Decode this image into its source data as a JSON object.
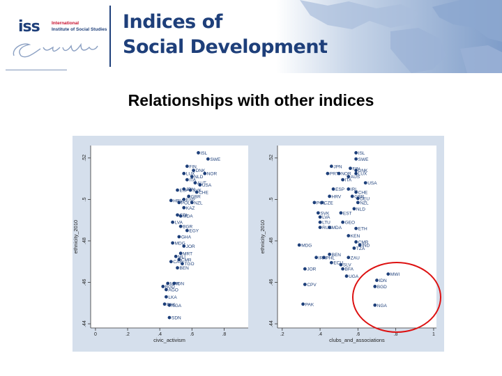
{
  "header": {
    "logo_abbr": "iss",
    "logo_line1": "International",
    "logo_line2": "Institute of Social Studies",
    "logo_signature": "Erasmus",
    "title_line1": "Indices of",
    "title_line2": "Social Development"
  },
  "slide_title": "Relationships with other indices",
  "colors": {
    "dot": "#1d3f7a",
    "panel_bg": "#d5dfec",
    "plot_bg": "#ffffff",
    "highlight": "#dd1111",
    "brand": "#1e3f7a"
  },
  "chart_data": [
    {
      "type": "scatter",
      "xlabel": "civic_activism",
      "ylabel": "ethnicity_2010",
      "xlim": [
        -0.03,
        0.95
      ],
      "ylim": [
        0.438,
        0.526
      ],
      "xticks": [
        "0",
        ".2",
        ".4",
        ".6",
        ".8"
      ],
      "xtick_values": [
        0,
        0.2,
        0.4,
        0.6,
        0.8
      ],
      "yticks": [
        ".44",
        ".46",
        ".48",
        ".5",
        ".52"
      ],
      "ytick_values": [
        0.44,
        0.46,
        0.48,
        0.5,
        0.52
      ],
      "grid": false,
      "points": [
        {
          "label": "ISL",
          "x": 0.64,
          "y": 0.5225
        },
        {
          "label": "SWE",
          "x": 0.7,
          "y": 0.5195
        },
        {
          "label": "FIN",
          "x": 0.57,
          "y": 0.516
        },
        {
          "label": "DNK",
          "x": 0.61,
          "y": 0.514
        },
        {
          "label": "NOR",
          "x": 0.68,
          "y": 0.5125
        },
        {
          "label": "LUX",
          "x": 0.55,
          "y": 0.5125
        },
        {
          "label": "NLD",
          "x": 0.6,
          "y": 0.511
        },
        {
          "label": "ITA",
          "x": 0.57,
          "y": 0.5095
        },
        {
          "label": "AUT",
          "x": 0.62,
          "y": 0.508
        },
        {
          "label": "USA",
          "x": 0.65,
          "y": 0.507
        },
        {
          "label": "JPN",
          "x": 0.55,
          "y": 0.505
        },
        {
          "label": "ESP",
          "x": 0.51,
          "y": 0.5045
        },
        {
          "label": "SVK",
          "x": 0.59,
          "y": 0.5045
        },
        {
          "label": "CHE",
          "x": 0.63,
          "y": 0.5035
        },
        {
          "label": "GBR",
          "x": 0.58,
          "y": 0.5015
        },
        {
          "label": "ESP",
          "x": 0.55,
          "y": 0.5
        },
        {
          "label": "POL",
          "x": 0.52,
          "y": 0.4985
        },
        {
          "label": "NZL",
          "x": 0.6,
          "y": 0.4985
        },
        {
          "label": "HRV",
          "x": 0.47,
          "y": 0.4995
        },
        {
          "label": "KAZ",
          "x": 0.55,
          "y": 0.496
        },
        {
          "label": "CRI",
          "x": 0.51,
          "y": 0.4925
        },
        {
          "label": "MDA",
          "x": 0.53,
          "y": 0.492
        },
        {
          "label": "LVA",
          "x": 0.48,
          "y": 0.489
        },
        {
          "label": "BGR",
          "x": 0.53,
          "y": 0.487
        },
        {
          "label": "EGY",
          "x": 0.57,
          "y": 0.485
        },
        {
          "label": "GHA",
          "x": 0.52,
          "y": 0.482
        },
        {
          "label": "MDG",
          "x": 0.48,
          "y": 0.479
        },
        {
          "label": "JOR",
          "x": 0.55,
          "y": 0.4775
        },
        {
          "label": "MRT",
          "x": 0.53,
          "y": 0.474
        },
        {
          "label": "MLI",
          "x": 0.5,
          "y": 0.4725
        },
        {
          "label": "CMR",
          "x": 0.52,
          "y": 0.471
        },
        {
          "label": "CAF",
          "x": 0.47,
          "y": 0.47
        },
        {
          "label": "TGO",
          "x": 0.54,
          "y": 0.469
        },
        {
          "label": "BEN",
          "x": 0.51,
          "y": 0.467
        },
        {
          "label": "MWI",
          "x": 0.45,
          "y": 0.4595
        },
        {
          "label": "IDN",
          "x": 0.49,
          "y": 0.4595
        },
        {
          "label": "BGD",
          "x": 0.42,
          "y": 0.458
        },
        {
          "label": "AGO",
          "x": 0.44,
          "y": 0.4565
        },
        {
          "label": "LKA",
          "x": 0.44,
          "y": 0.453
        },
        {
          "label": "PAK",
          "x": 0.43,
          "y": 0.4495
        },
        {
          "label": "NGA",
          "x": 0.46,
          "y": 0.449
        },
        {
          "label": "SDN",
          "x": 0.46,
          "y": 0.443
        }
      ]
    },
    {
      "type": "scatter",
      "xlabel": "clubs_and_associations",
      "ylabel": "ethnicity_2010",
      "xlim": [
        0.175,
        1.015
      ],
      "ylim": [
        0.438,
        0.526
      ],
      "xticks": [
        ".2",
        ".4",
        ".6",
        ".8",
        "1"
      ],
      "xtick_values": [
        0.2,
        0.4,
        0.6,
        0.8,
        1.0
      ],
      "yticks": [
        ".44",
        ".46",
        ".48",
        ".5",
        ".52"
      ],
      "ytick_values": [
        0.44,
        0.46,
        0.48,
        0.5,
        0.52
      ],
      "grid": false,
      "points": [
        {
          "label": "ISL",
          "x": 0.59,
          "y": 0.5225
        },
        {
          "label": "SWE",
          "x": 0.59,
          "y": 0.5195
        },
        {
          "label": "JPN",
          "x": 0.46,
          "y": 0.516
        },
        {
          "label": "FIN",
          "x": 0.56,
          "y": 0.515
        },
        {
          "label": "DNK",
          "x": 0.59,
          "y": 0.514
        },
        {
          "label": "LUX",
          "x": 0.59,
          "y": 0.5125
        },
        {
          "label": "PRT",
          "x": 0.44,
          "y": 0.5125
        },
        {
          "label": "NOR",
          "x": 0.5,
          "y": 0.5125
        },
        {
          "label": "AUS",
          "x": 0.55,
          "y": 0.511
        },
        {
          "label": "ITA",
          "x": 0.52,
          "y": 0.5095
        },
        {
          "label": "USA",
          "x": 0.64,
          "y": 0.508
        },
        {
          "label": "ESP",
          "x": 0.47,
          "y": 0.505
        },
        {
          "label": "IRL",
          "x": 0.55,
          "y": 0.505
        },
        {
          "label": "CHE",
          "x": 0.59,
          "y": 0.5035
        },
        {
          "label": "HRV",
          "x": 0.45,
          "y": 0.5015
        },
        {
          "label": "GBR",
          "x": 0.57,
          "y": 0.5015
        },
        {
          "label": "DEU",
          "x": 0.6,
          "y": 0.5005
        },
        {
          "label": "POL",
          "x": 0.37,
          "y": 0.4985
        },
        {
          "label": "CZE",
          "x": 0.41,
          "y": 0.4985
        },
        {
          "label": "NZL",
          "x": 0.6,
          "y": 0.4985
        },
        {
          "label": "NLD",
          "x": 0.58,
          "y": 0.4955
        },
        {
          "label": "SVK",
          "x": 0.39,
          "y": 0.4935
        },
        {
          "label": "LVA",
          "x": 0.4,
          "y": 0.4915
        },
        {
          "label": "EST",
          "x": 0.51,
          "y": 0.4935
        },
        {
          "label": "LTU",
          "x": 0.4,
          "y": 0.489
        },
        {
          "label": "GEO",
          "x": 0.52,
          "y": 0.489
        },
        {
          "label": "RUS",
          "x": 0.4,
          "y": 0.4865
        },
        {
          "label": "MDA",
          "x": 0.45,
          "y": 0.4865
        },
        {
          "label": "ETH",
          "x": 0.59,
          "y": 0.486
        },
        {
          "label": "KEN",
          "x": 0.55,
          "y": 0.4825
        },
        {
          "label": "MDG",
          "x": 0.29,
          "y": 0.478
        },
        {
          "label": "CMR",
          "x": 0.59,
          "y": 0.4795
        },
        {
          "label": "IND",
          "x": 0.61,
          "y": 0.478
        },
        {
          "label": "TZA",
          "x": 0.58,
          "y": 0.4765
        },
        {
          "label": "BEN",
          "x": 0.45,
          "y": 0.4735
        },
        {
          "label": "IRN",
          "x": 0.38,
          "y": 0.472
        },
        {
          "label": "PHL",
          "x": 0.42,
          "y": 0.472
        },
        {
          "label": "ZAU",
          "x": 0.55,
          "y": 0.472
        },
        {
          "label": "ECU",
          "x": 0.46,
          "y": 0.4695
        },
        {
          "label": "SLV",
          "x": 0.51,
          "y": 0.4685
        },
        {
          "label": "JOR",
          "x": 0.32,
          "y": 0.4665
        },
        {
          "label": "BFA",
          "x": 0.52,
          "y": 0.4665
        },
        {
          "label": "MWI",
          "x": 0.76,
          "y": 0.464
        },
        {
          "label": "UGA",
          "x": 0.54,
          "y": 0.463
        },
        {
          "label": "IDN",
          "x": 0.7,
          "y": 0.461
        },
        {
          "label": "CPV",
          "x": 0.32,
          "y": 0.459
        },
        {
          "label": "BGD",
          "x": 0.69,
          "y": 0.458
        },
        {
          "label": "PAK",
          "x": 0.31,
          "y": 0.4495
        },
        {
          "label": "NGA",
          "x": 0.69,
          "y": 0.449
        }
      ]
    }
  ]
}
